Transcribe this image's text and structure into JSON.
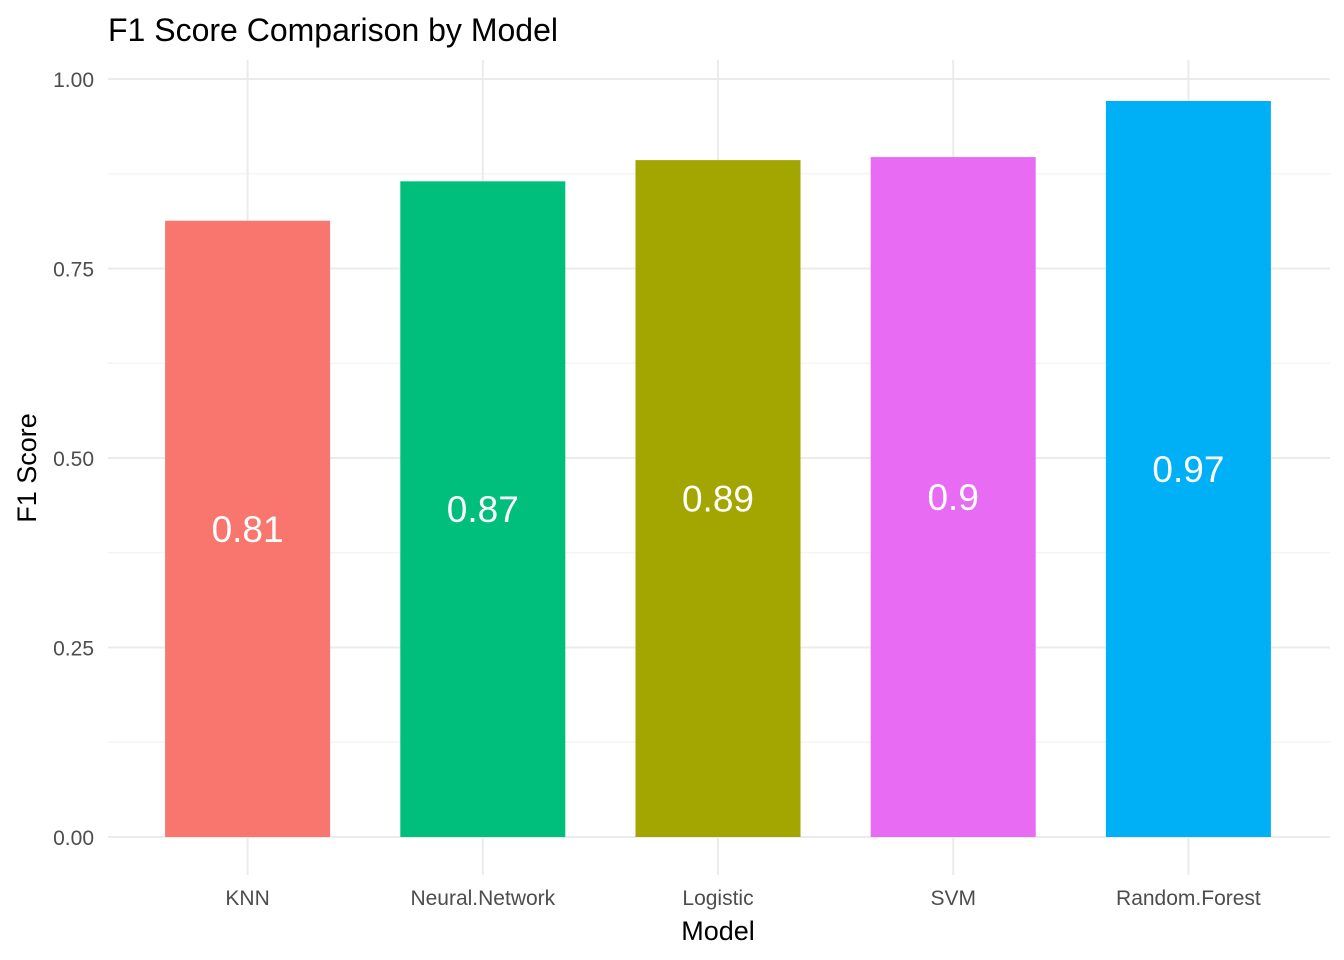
{
  "chart_data": {
    "type": "bar",
    "title": "F1 Score Comparison by Model",
    "xlabel": "Model",
    "ylabel": "F1 Score",
    "categories": [
      "KNN",
      "Neural.Network",
      "Logistic",
      "SVM",
      "Random.Forest"
    ],
    "values": [
      0.813,
      0.865,
      0.893,
      0.897,
      0.971
    ],
    "data_labels": [
      "0.81",
      "0.87",
      "0.89",
      "0.9",
      "0.97"
    ],
    "colors": [
      "#F8766D",
      "#00BF7D",
      "#A3A500",
      "#E76BF3",
      "#00B0F6"
    ],
    "ylim": [
      0,
      1
    ],
    "yticks": [
      0,
      0.25,
      0.5,
      0.75,
      1.0
    ],
    "ytick_labels": [
      "0.00",
      "0.25",
      "0.50",
      "0.75",
      "1.00"
    ],
    "grid": true,
    "legend": "none"
  }
}
